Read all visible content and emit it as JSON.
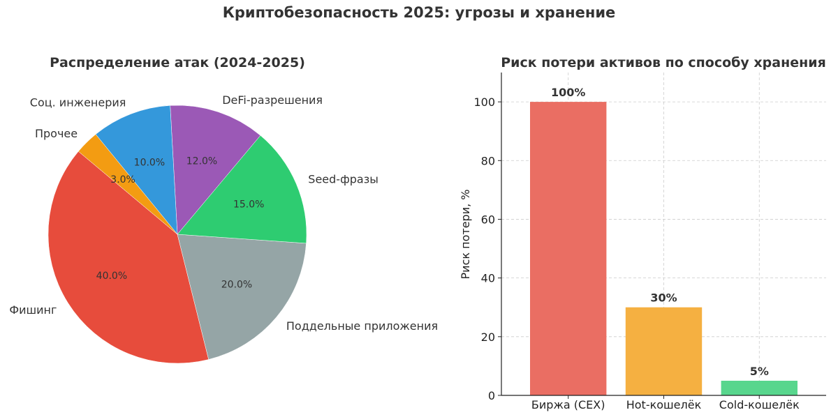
{
  "figure": {
    "title": "Криптобезопасность 2025: угрозы и хранение"
  },
  "colors": {
    "pie": [
      "#e74c3c",
      "#95a5a6",
      "#2ecc71",
      "#9b59b6",
      "#3498db",
      "#f39c12"
    ],
    "bars": [
      "#ea6e63",
      "#f5b041",
      "#58d68d"
    ],
    "grid": "#cccccc",
    "text": "#333333"
  },
  "chart_data": [
    {
      "type": "pie",
      "title": "Распределение атак (2024-2025)",
      "start_angle_deg": 140,
      "direction": "counterclockwise",
      "slices": [
        {
          "label": "Фишинг",
          "value": 40,
          "pct_label": "40.0%"
        },
        {
          "label": "Поддельные приложения",
          "value": 20,
          "pct_label": "20.0%"
        },
        {
          "label": "Seed-фразы",
          "value": 15,
          "pct_label": "15.0%"
        },
        {
          "label": "DeFi-разрешения",
          "value": 12,
          "pct_label": "12.0%"
        },
        {
          "label": "Соц. инженерия",
          "value": 10,
          "pct_label": "10.0%"
        },
        {
          "label": "Прочее",
          "value": 3,
          "pct_label": "3.0%"
        }
      ]
    },
    {
      "type": "bar",
      "title": "Риск потери активов по способу хранения",
      "categories": [
        "Биржа (CEX)",
        "Hot-кошелёк",
        "Cold-кошелёк"
      ],
      "values": [
        100,
        30,
        5
      ],
      "value_labels": [
        "100%",
        "30%",
        "5%"
      ],
      "xlabel": "",
      "ylabel": "Риск потери, %",
      "ylim": [
        0,
        110
      ],
      "yticks": [
        0,
        20,
        40,
        60,
        80,
        100
      ],
      "grid": true
    }
  ]
}
